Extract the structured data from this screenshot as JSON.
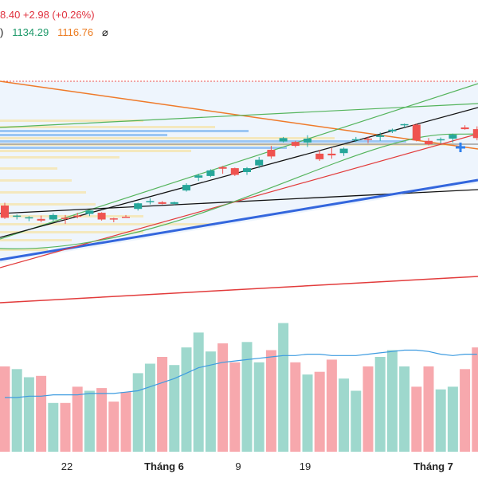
{
  "header": {
    "price_change_line": "8.40  +2.98 (+0.26%)",
    "indicator_marker": ")",
    "indicator_value_1": "1134.29",
    "indicator_value_2": "1116.76",
    "hide_icon": "⌀"
  },
  "colors": {
    "up": "#26a69a",
    "down": "#ef5350",
    "up_volume": "#9ed8cd",
    "down_volume": "#f7a8ad",
    "volume_ma": "#3d9be0",
    "trend_blue": "#3366dd",
    "trend_black": "#111111",
    "trend_green": "#54b45c",
    "trend_orange": "#ef7a2a",
    "trend_red": "#e23b3b",
    "volume_profile": "#f6e3a8",
    "volume_profile_blue": "#7fb5f0",
    "channel_fill": "#eef5fd"
  },
  "chart_data": {
    "type": "candlestick",
    "x_tick_labels": [
      {
        "label": "22",
        "bold": false
      },
      {
        "label": "Tháng 6",
        "bold": true
      },
      {
        "label": "9",
        "bold": false
      },
      {
        "label": "19",
        "bold": false
      },
      {
        "label": "Tháng 7",
        "bold": true
      }
    ],
    "candles": [
      {
        "o": 20,
        "h": 25,
        "l": -4,
        "c": -2
      },
      {
        "o": 0,
        "h": 4,
        "l": -5,
        "c": 2
      },
      {
        "o": -3,
        "h": 1,
        "l": -8,
        "c": -1
      },
      {
        "o": -4,
        "h": 2,
        "l": -10,
        "c": -7
      },
      {
        "o": -5,
        "h": 6,
        "l": -8,
        "c": 3
      },
      {
        "o": -2,
        "h": 3,
        "l": -13,
        "c": -3
      },
      {
        "o": 2,
        "h": 7,
        "l": -3,
        "c": 1
      },
      {
        "o": 5,
        "h": 10,
        "l": 1,
        "c": 11
      },
      {
        "o": 7,
        "h": 8,
        "l": -7,
        "c": -5
      },
      {
        "o": -3,
        "h": -2,
        "l": -10,
        "c": -4
      },
      {
        "o": 0,
        "h": 3,
        "l": -2,
        "c": -1
      },
      {
        "o": 14,
        "h": 25,
        "l": 11,
        "c": 24
      },
      {
        "o": 27,
        "h": 33,
        "l": 22,
        "c": 28
      },
      {
        "o": 26,
        "h": 28,
        "l": 22,
        "c": 23
      },
      {
        "o": 23,
        "h": 27,
        "l": 21,
        "c": 26
      },
      {
        "o": 47,
        "h": 60,
        "l": 45,
        "c": 57
      },
      {
        "o": 70,
        "h": 77,
        "l": 64,
        "c": 74
      },
      {
        "o": 73,
        "h": 85,
        "l": 71,
        "c": 83
      },
      {
        "o": 89,
        "h": 91,
        "l": 77,
        "c": 86
      },
      {
        "o": 87,
        "h": 88,
        "l": 73,
        "c": 75
      },
      {
        "o": 80,
        "h": 89,
        "l": 75,
        "c": 87
      },
      {
        "o": 92,
        "h": 107,
        "l": 87,
        "c": 102
      },
      {
        "o": 120,
        "h": 127,
        "l": 104,
        "c": 108
      },
      {
        "o": 135,
        "h": 143,
        "l": 133,
        "c": 141
      },
      {
        "o": 134,
        "h": 136,
        "l": 124,
        "c": 127
      },
      {
        "o": 133,
        "h": 146,
        "l": 125,
        "c": 140
      },
      {
        "o": 113,
        "h": 120,
        "l": 100,
        "c": 103
      },
      {
        "o": 113,
        "h": 123,
        "l": 104,
        "c": 110
      },
      {
        "o": 114,
        "h": 124,
        "l": 109,
        "c": 122
      },
      {
        "o": 138,
        "h": 143,
        "l": 134,
        "c": 139
      },
      {
        "o": 140,
        "h": 144,
        "l": 132,
        "c": 139
      },
      {
        "o": 143,
        "h": 151,
        "l": 136,
        "c": 146
      },
      {
        "o": 153,
        "h": 158,
        "l": 150,
        "c": 156
      },
      {
        "o": 164,
        "h": 167,
        "l": 160,
        "c": 166
      },
      {
        "o": 165,
        "h": 167,
        "l": 135,
        "c": 137
      },
      {
        "o": 136,
        "h": 141,
        "l": 128,
        "c": 130
      },
      {
        "o": 137,
        "h": 142,
        "l": 131,
        "c": 139
      },
      {
        "o": 140,
        "h": 149,
        "l": 133,
        "c": 147
      },
      {
        "o": 160,
        "h": 164,
        "l": 156,
        "c": 157
      },
      {
        "o": 157,
        "h": 162,
        "l": 137,
        "c": 141
      }
    ],
    "volume": [
      63,
      61,
      55,
      56,
      36,
      36,
      48,
      45,
      47,
      37,
      44,
      58,
      65,
      70,
      64,
      77,
      88,
      74,
      80,
      66,
      81,
      66,
      75,
      95,
      66,
      57,
      59,
      68,
      54,
      45,
      63,
      70,
      75,
      63,
      48,
      63,
      46,
      48,
      61,
      77
    ],
    "volume_ma": [
      40,
      40,
      41,
      41,
      42,
      42,
      42,
      43,
      43,
      43,
      44,
      45,
      48,
      51,
      54,
      58,
      62,
      64,
      66,
      67,
      68,
      69,
      70,
      71,
      71,
      72,
      72,
      71,
      71,
      71,
      72,
      73,
      74,
      75,
      75,
      74,
      72,
      71,
      72,
      72
    ],
    "volume_ylim": [
      0,
      100
    ]
  }
}
